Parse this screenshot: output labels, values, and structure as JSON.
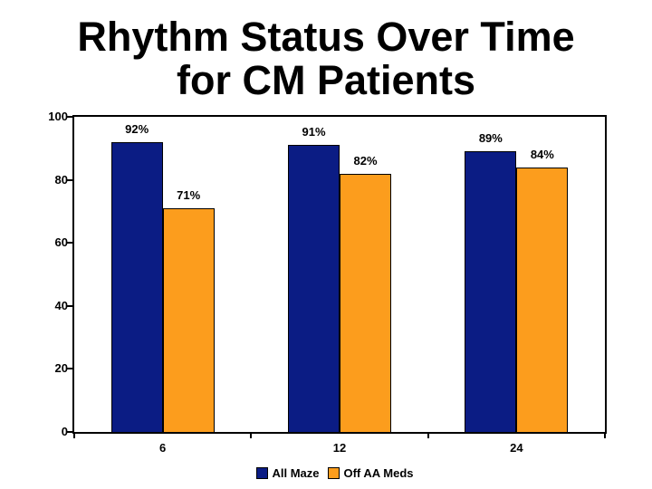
{
  "title": {
    "line1": "Rhythm Status Over Time",
    "line2": "for CM Patients"
  },
  "chart_data": {
    "type": "bar",
    "title": "Rhythm Status Over Time for CM Patients",
    "categories": [
      "6",
      "12",
      "24"
    ],
    "series": [
      {
        "name": "All Maze",
        "color": "#0b1c84",
        "values": [
          92,
          91,
          89
        ],
        "labels": [
          "92%",
          "91%",
          "89%"
        ]
      },
      {
        "name": "Off AA Meds",
        "color": "#fc9d1d",
        "values": [
          71,
          82,
          84
        ],
        "labels": [
          "71%",
          "82%",
          "84%"
        ]
      }
    ],
    "xlabel": "",
    "ylabel": "",
    "ylim": [
      0,
      100
    ],
    "yticks": [
      0,
      20,
      40,
      60,
      80,
      100
    ],
    "grid": false,
    "legend_position": "bottom",
    "axis_color": "#000000",
    "background_color": "#ffffff"
  }
}
